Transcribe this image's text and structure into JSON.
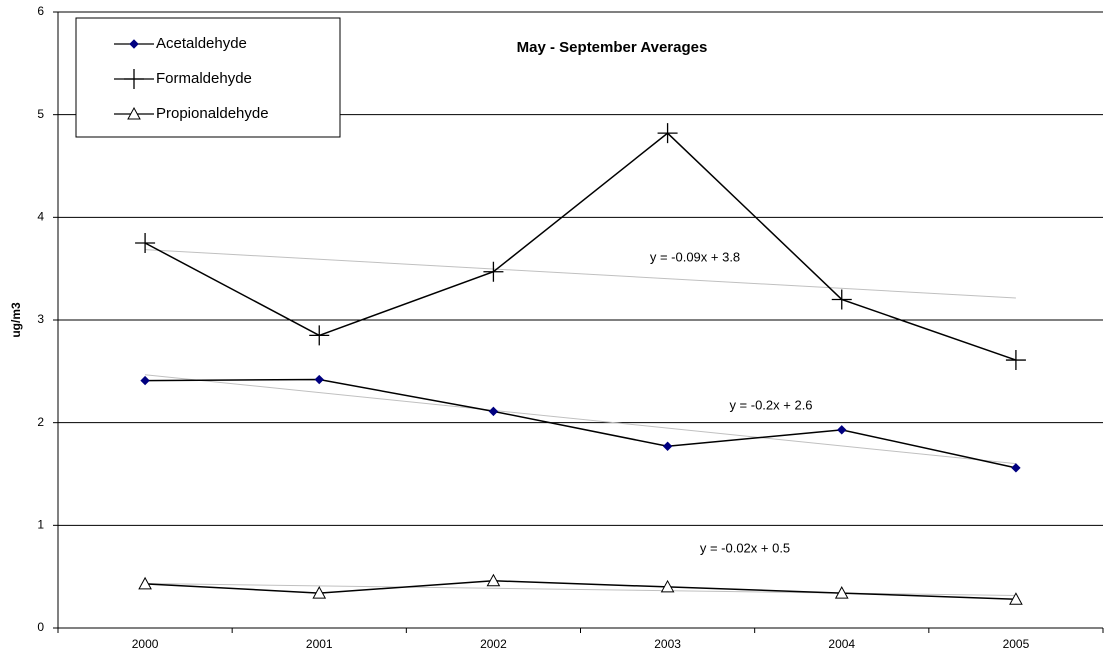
{
  "chart_data": {
    "type": "line",
    "title": "May - September Averages",
    "y_label": "ug/m3",
    "categories": [
      "2000",
      "2001",
      "2002",
      "2003",
      "2004",
      "2005"
    ],
    "series": [
      {
        "name": "Acetaldehyde",
        "color": "#000080",
        "marker": "diamond",
        "values": [
          2.41,
          2.42,
          2.11,
          1.77,
          1.93,
          1.56
        ],
        "trend_equation": "y = -0.2x + 2.6"
      },
      {
        "name": "Formaldehyde",
        "color": "#000000",
        "marker": "plus",
        "values": [
          3.75,
          2.85,
          3.47,
          4.82,
          3.2,
          2.61
        ],
        "trend_equation": "y = -0.09x + 3.8"
      },
      {
        "name": "Propionaldehyde",
        "color": "#000000",
        "marker": "triangle",
        "values": [
          0.43,
          0.34,
          0.46,
          0.4,
          0.34,
          0.28
        ],
        "trend_equation": "y = -0.02x + 0.5"
      }
    ],
    "trendline": true,
    "trend_color": "#c0c0c0",
    "ylim": [
      0,
      6
    ],
    "yticks": [
      0,
      1,
      2,
      3,
      4,
      5,
      6
    ],
    "grid": true
  }
}
